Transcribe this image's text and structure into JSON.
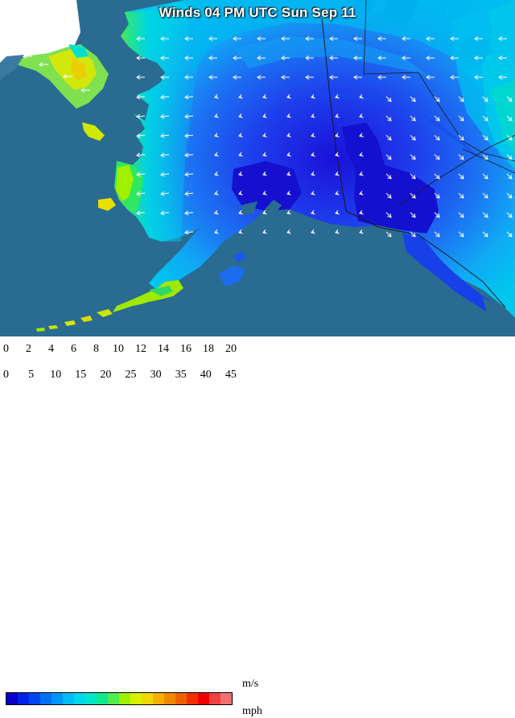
{
  "title": "Winds 04 PM UTC Sun Sep 11",
  "legend": {
    "ms_unit": "m/s",
    "mph_unit": "mph",
    "ms_ticks": [
      "0",
      "2",
      "4",
      "6",
      "8",
      "10",
      "12",
      "14",
      "16",
      "18",
      "20"
    ],
    "mph_ticks": [
      "0",
      "5",
      "10",
      "15",
      "20",
      "25",
      "30",
      "35",
      "40",
      "45"
    ],
    "colors": [
      "#0a00c8",
      "#0022e6",
      "#0046f0",
      "#0070f5",
      "#0096f8",
      "#00bcf5",
      "#00d7e8",
      "#00e6c8",
      "#10e890",
      "#50ec50",
      "#a0f000",
      "#d8f000",
      "#f0d800",
      "#f5b000",
      "#f08800",
      "#f06000",
      "#f03000",
      "#f00000",
      "#f04040",
      "#f07070"
    ]
  },
  "colors": {
    "ocean": "#2a6b92",
    "land_outside": "#2f6f96",
    "snow": "#ffffff",
    "border_line": "#1a1a1a"
  }
}
